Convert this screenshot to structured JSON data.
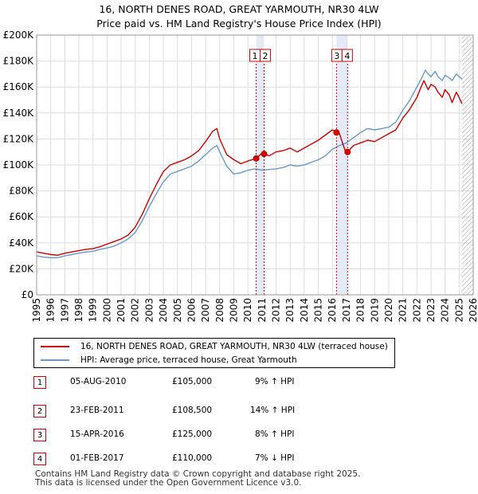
{
  "chart_data": {
    "type": "line",
    "title": "16, NORTH DENES ROAD, GREAT YARMOUTH, NR30 4LW",
    "subtitle": "Price paid vs. HM Land Registry's House Price Index (HPI)",
    "ylim": [
      0,
      200000
    ],
    "xlim": [
      1995,
      2026
    ],
    "y_ticks": [
      {
        "value": 0,
        "label": "£0"
      },
      {
        "value": 20000,
        "label": "£20K"
      },
      {
        "value": 40000,
        "label": "£40K"
      },
      {
        "value": 60000,
        "label": "£60K"
      },
      {
        "value": 80000,
        "label": "£80K"
      },
      {
        "value": 100000,
        "label": "£100K"
      },
      {
        "value": 120000,
        "label": "£120K"
      },
      {
        "value": 140000,
        "label": "£140K"
      },
      {
        "value": 160000,
        "label": "£160K"
      },
      {
        "value": 180000,
        "label": "£180K"
      },
      {
        "value": 200000,
        "label": "£200K"
      }
    ],
    "x_ticks": [
      "1995",
      "1996",
      "1997",
      "1998",
      "1999",
      "2000",
      "2001",
      "2002",
      "2003",
      "2004",
      "2005",
      "2006",
      "2007",
      "2008",
      "2009",
      "2010",
      "2011",
      "2012",
      "2013",
      "2014",
      "2015",
      "2016",
      "2017",
      "2018",
      "2019",
      "2020",
      "2021",
      "2022",
      "2023",
      "2024",
      "2025",
      "2026"
    ],
    "grid": true,
    "series": [
      {
        "name": "16, NORTH DENES ROAD, GREAT YARMOUTH, NR30 4LW (terraced house)",
        "color": "#cc0000",
        "x": [
          1995.0,
          1995.5,
          1996.0,
          1996.5,
          1997.0,
          1997.5,
          1998.0,
          1998.5,
          1999.0,
          1999.5,
          2000.0,
          2000.5,
          2001.0,
          2001.5,
          2002.0,
          2002.5,
          2003.0,
          2003.5,
          2004.0,
          2004.5,
          2005.0,
          2005.5,
          2006.0,
          2006.5,
          2007.0,
          2007.5,
          2007.8,
          2008.0,
          2008.5,
          2009.0,
          2009.5,
          2010.0,
          2010.59,
          2011.0,
          2011.15,
          2011.5,
          2012.0,
          2012.5,
          2013.0,
          2013.5,
          2014.0,
          2014.5,
          2015.0,
          2015.5,
          2016.0,
          2016.29,
          2016.5,
          2017.0,
          2017.08,
          2017.5,
          2018.0,
          2018.5,
          2019.0,
          2019.5,
          2020.0,
          2020.5,
          2021.0,
          2021.5,
          2022.0,
          2022.3,
          2022.5,
          2022.8,
          2023.0,
          2023.3,
          2023.5,
          2023.8,
          2024.0,
          2024.3,
          2024.5,
          2024.8,
          2025.0,
          2025.2
        ],
        "values": [
          33000,
          32000,
          31000,
          30500,
          32000,
          33000,
          34000,
          35000,
          35500,
          37000,
          39000,
          41000,
          43000,
          46000,
          52000,
          62000,
          74000,
          85000,
          95000,
          100000,
          102000,
          104000,
          107000,
          111000,
          118000,
          126000,
          128000,
          120000,
          108000,
          104000,
          101000,
          103000,
          105000,
          109000,
          108500,
          107000,
          110000,
          111000,
          113000,
          110000,
          113000,
          116000,
          119000,
          123000,
          127000,
          125000,
          124000,
          108000,
          110000,
          115000,
          117000,
          119000,
          118000,
          121000,
          124000,
          127000,
          136000,
          143000,
          152000,
          160000,
          165000,
          158000,
          162000,
          160000,
          156000,
          152000,
          158000,
          154000,
          148000,
          156000,
          152000,
          147000
        ]
      },
      {
        "name": "HPI: Average price, terraced house, Great Yarmouth",
        "color": "#6699cc",
        "x": [
          1995.0,
          1995.5,
          1996.0,
          1996.5,
          1997.0,
          1997.5,
          1998.0,
          1998.5,
          1999.0,
          1999.5,
          2000.0,
          2000.5,
          2001.0,
          2001.5,
          2002.0,
          2002.5,
          2003.0,
          2003.5,
          2004.0,
          2004.5,
          2005.0,
          2005.5,
          2006.0,
          2006.5,
          2007.0,
          2007.5,
          2007.8,
          2008.0,
          2008.5,
          2009.0,
          2009.5,
          2010.0,
          2010.5,
          2011.0,
          2011.5,
          2012.0,
          2012.5,
          2013.0,
          2013.5,
          2014.0,
          2014.5,
          2015.0,
          2015.5,
          2016.0,
          2016.5,
          2017.0,
          2017.5,
          2018.0,
          2018.5,
          2019.0,
          2019.5,
          2020.0,
          2020.5,
          2021.0,
          2021.5,
          2022.0,
          2022.3,
          2022.6,
          2022.8,
          2023.0,
          2023.3,
          2023.5,
          2023.8,
          2024.0,
          2024.3,
          2024.5,
          2024.8,
          2025.0,
          2025.2
        ],
        "values": [
          30000,
          29000,
          28500,
          28500,
          30000,
          31000,
          32000,
          33000,
          33500,
          35000,
          36000,
          37500,
          40000,
          43000,
          48000,
          57000,
          68000,
          78000,
          87000,
          93000,
          95000,
          97000,
          99000,
          103000,
          108000,
          113000,
          115000,
          110000,
          99000,
          93000,
          94000,
          96000,
          97000,
          96000,
          96500,
          97000,
          98000,
          100000,
          99000,
          100000,
          102000,
          104000,
          107000,
          112000,
          115000,
          117000,
          121000,
          125000,
          128000,
          127000,
          128000,
          129000,
          133000,
          142000,
          150000,
          160000,
          166000,
          173000,
          170000,
          168000,
          172000,
          168000,
          165000,
          169000,
          167000,
          165000,
          170000,
          168000,
          166000
        ]
      }
    ],
    "shaded_periods": [
      {
        "from": 2010.59,
        "to": 2011.15
      },
      {
        "from": 2016.29,
        "to": 2017.08
      }
    ],
    "markers": [
      {
        "id": "1",
        "x": 2010.59,
        "value": 105000
      },
      {
        "id": "2",
        "x": 2011.15,
        "value": 108500
      },
      {
        "id": "3",
        "x": 2016.29,
        "value": 125000
      },
      {
        "id": "4",
        "x": 2017.08,
        "value": 110000
      }
    ],
    "future_hatch_from": 2025.2
  },
  "legend": {
    "items": [
      {
        "label": "16, NORTH DENES ROAD, GREAT YARMOUTH, NR30 4LW (terraced house)",
        "color": "#cc0000"
      },
      {
        "label": "HPI: Average price, terraced house, Great Yarmouth",
        "color": "#6699cc"
      }
    ]
  },
  "transactions": [
    {
      "id": "1",
      "date": "05-AUG-2010",
      "price": "£105,000",
      "hpi": "9% ↑ HPI"
    },
    {
      "id": "2",
      "date": "23-FEB-2011",
      "price": "£108,500",
      "hpi": "14% ↑ HPI"
    },
    {
      "id": "3",
      "date": "15-APR-2016",
      "price": "£125,000",
      "hpi": "8% ↑ HPI"
    },
    {
      "id": "4",
      "date": "01-FEB-2017",
      "price": "£110,000",
      "hpi": "7% ↓ HPI"
    }
  ],
  "footer": {
    "line1": "Contains HM Land Registry data © Crown copyright and database right 2025.",
    "line2": "This data is licensed under the Open Government Licence v3.0."
  }
}
